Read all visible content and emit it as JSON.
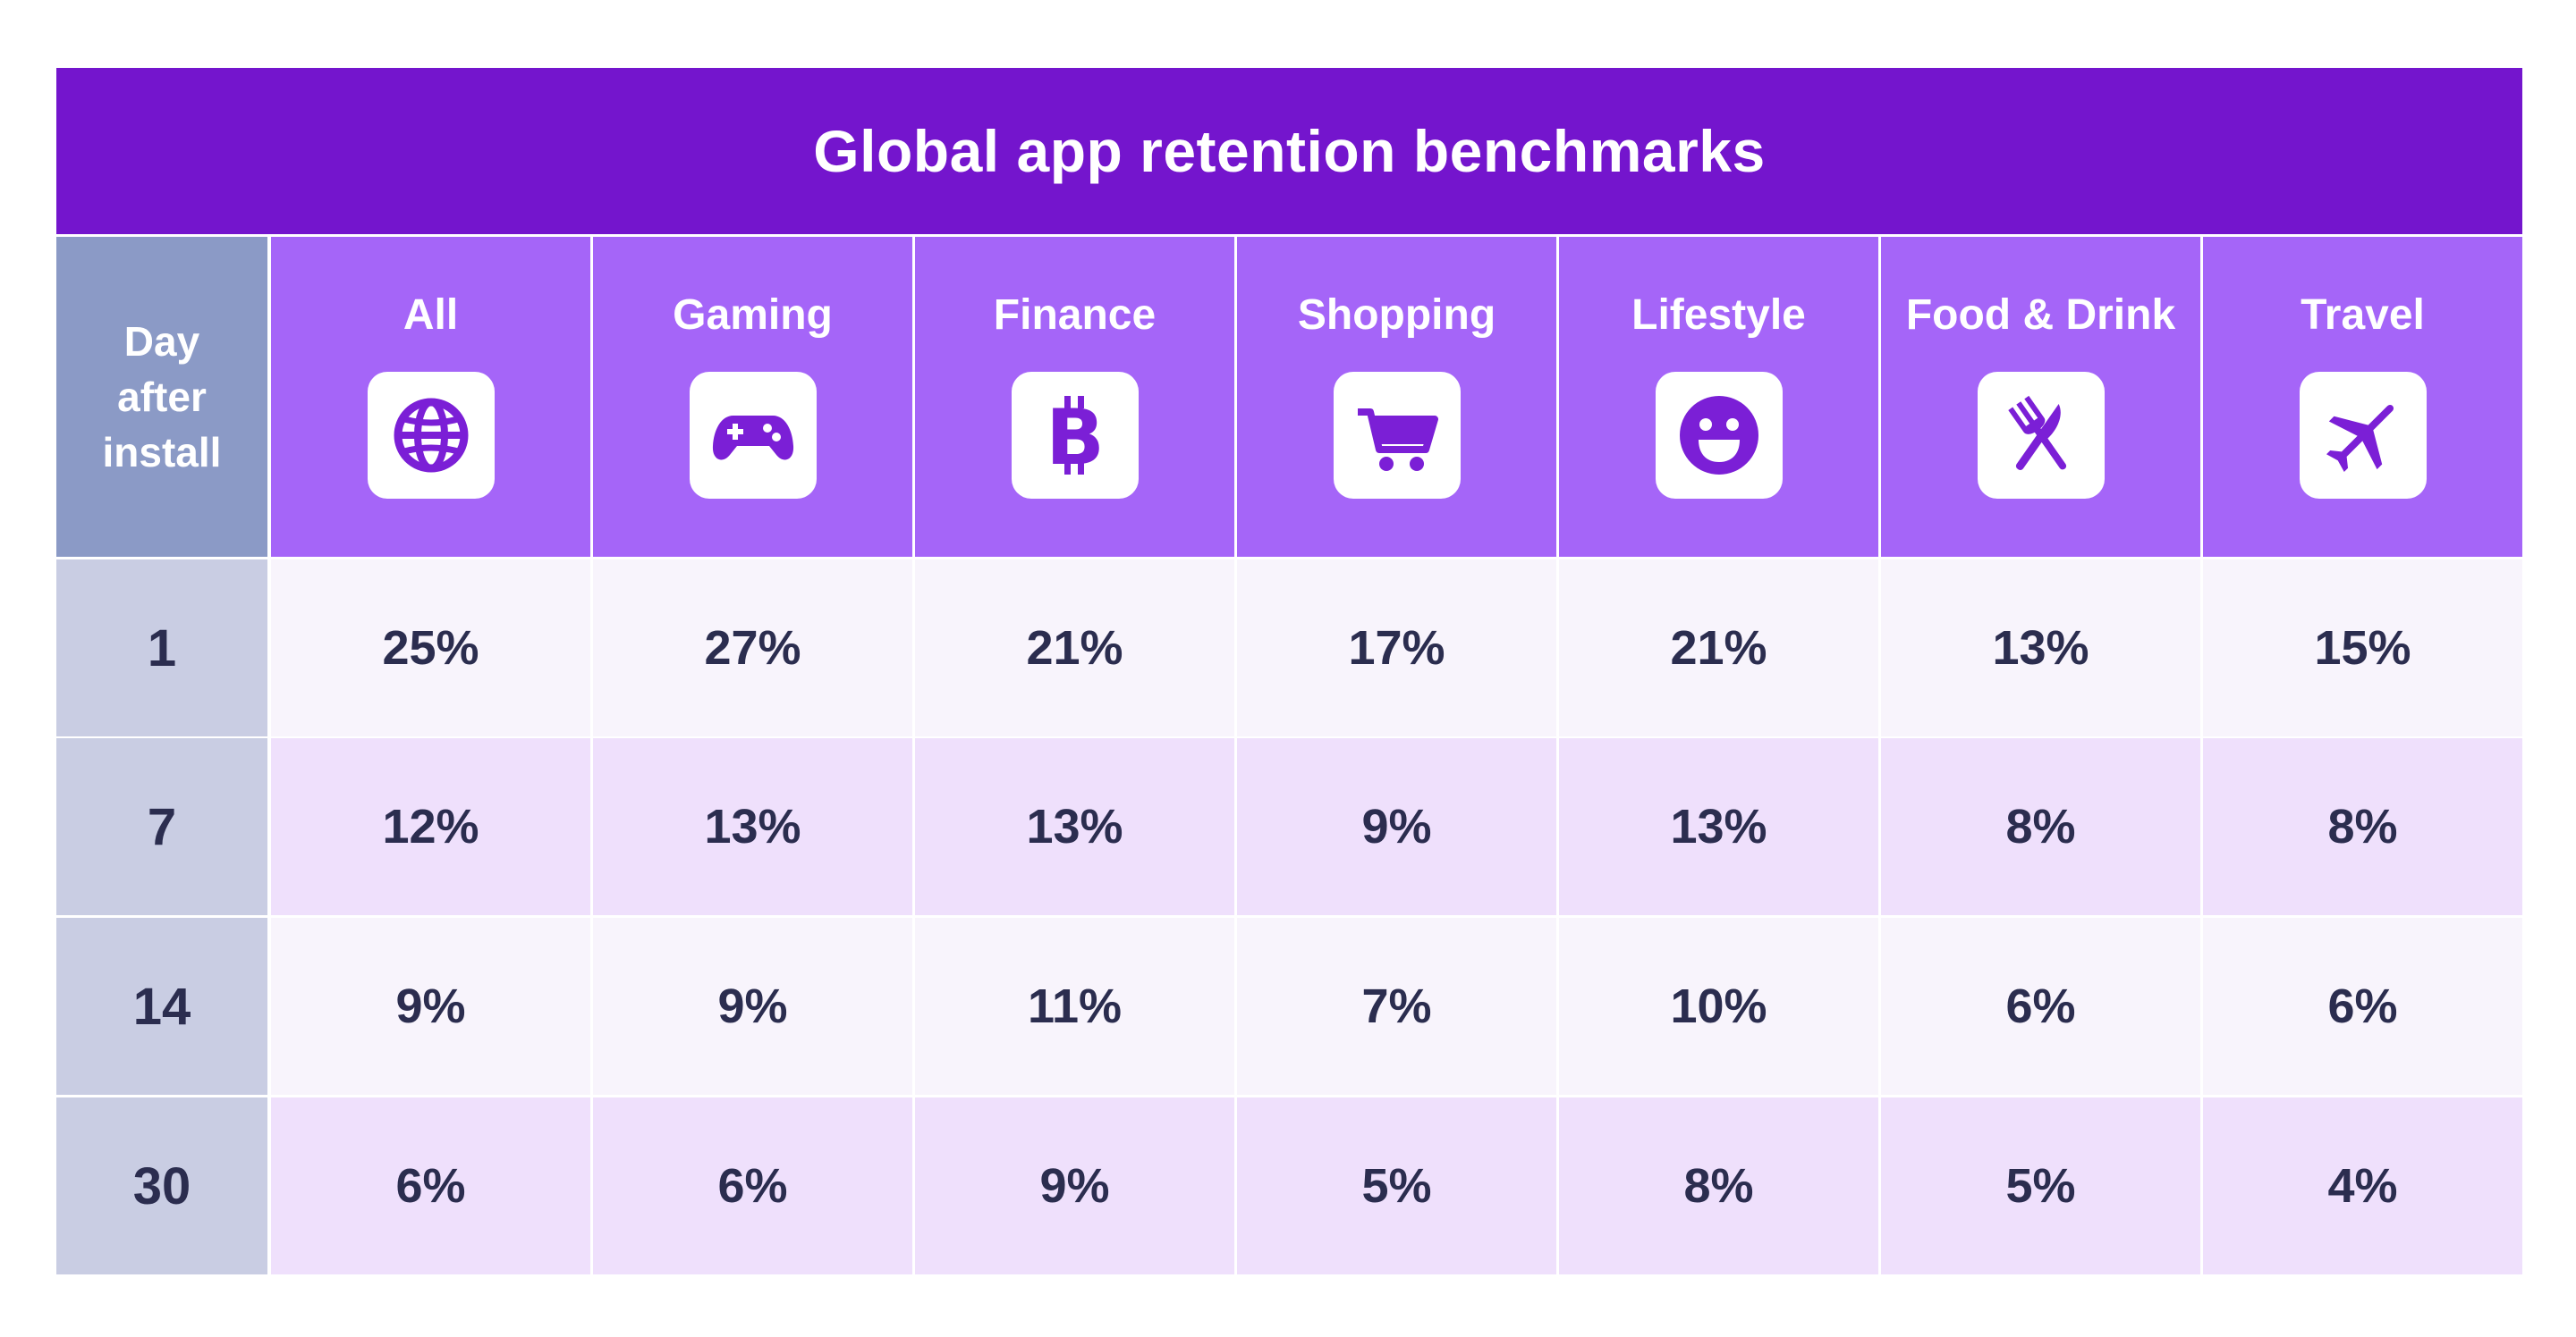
{
  "chart_data": {
    "type": "table",
    "title": "Global app retention benchmarks",
    "row_header": [
      "Day",
      "after",
      "install"
    ],
    "categories": [
      {
        "name": "All",
        "icon": "globe-icon"
      },
      {
        "name": "Gaming",
        "icon": "gamepad-icon"
      },
      {
        "name": "Finance",
        "icon": "bitcoin-icon"
      },
      {
        "name": "Shopping",
        "icon": "shopping-cart-icon"
      },
      {
        "name": "Lifestyle",
        "icon": "smiley-icon"
      },
      {
        "name": "Food & Drink",
        "icon": "fork-knife-icon"
      },
      {
        "name": "Travel",
        "icon": "airplane-icon"
      }
    ],
    "rows": [
      {
        "day": "1",
        "values": [
          "25%",
          "27%",
          "21%",
          "17%",
          "21%",
          "13%",
          "15%"
        ]
      },
      {
        "day": "7",
        "values": [
          "12%",
          "13%",
          "13%",
          "9%",
          "13%",
          "8%",
          "8%"
        ]
      },
      {
        "day": "14",
        "values": [
          "9%",
          "9%",
          "11%",
          "7%",
          "10%",
          "6%",
          "6%"
        ]
      },
      {
        "day": "30",
        "values": [
          "6%",
          "6%",
          "9%",
          "5%",
          "8%",
          "5%",
          "4%"
        ]
      }
    ]
  },
  "colors": {
    "title_bg": "#7415cd",
    "header_bg": "#a565f8",
    "day_header_bg": "#8b9ac6",
    "day_cell_bg": "#c9cde3",
    "row_light": "#f8f4fc",
    "row_dark": "#efe0fc",
    "icon_color": "#7b1fd6",
    "text_dark": "#2b2d4f"
  }
}
